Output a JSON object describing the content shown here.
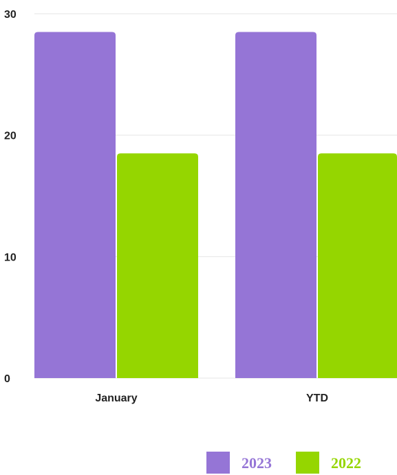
{
  "chart_data": {
    "type": "bar",
    "title": "",
    "xlabel": "",
    "ylabel": "",
    "categories": [
      "January",
      "YTD"
    ],
    "series": [
      {
        "name": "2023",
        "values": [
          28.5,
          28.5
        ]
      },
      {
        "name": "2022",
        "values": [
          18.5,
          18.5
        ]
      }
    ],
    "ylim": [
      0,
      30
    ],
    "yticks": [
      "0",
      "10",
      "20",
      "30"
    ],
    "grid": true,
    "legend": "bottom-right",
    "colors": {
      "2023": "#9575d6",
      "2022": "#95d600",
      "grid": "#e6e6e6",
      "text": "#222222"
    }
  }
}
